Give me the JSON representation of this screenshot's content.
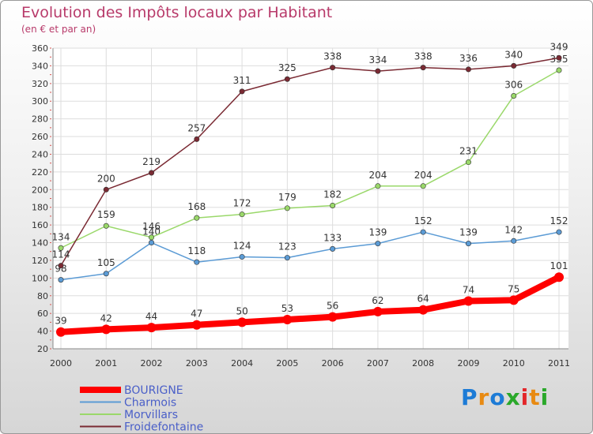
{
  "title": "Evolution des Impôts locaux par Habitant",
  "subtitle": "(en € et par an)",
  "logo": {
    "text": "Proxiti",
    "letters": [
      "P",
      "r",
      "o",
      "x",
      "i",
      "t",
      "i"
    ],
    "colors": [
      "#1d7bd6",
      "#e88a12",
      "#1d7bd6",
      "#2aa82a",
      "#e3262a",
      "#e88a12",
      "#2aa82a"
    ]
  },
  "chart_data": {
    "type": "line",
    "x": [
      "2000",
      "2001",
      "2002",
      "2003",
      "2004",
      "2005",
      "2006",
      "2007",
      "2008",
      "2009",
      "2010",
      "2011"
    ],
    "ylim": [
      20,
      360
    ],
    "yticks": [
      20,
      40,
      60,
      80,
      100,
      120,
      140,
      160,
      180,
      200,
      220,
      240,
      260,
      280,
      300,
      320,
      340,
      360
    ],
    "grid": true,
    "legend_position": "bottom-left",
    "series": [
      {
        "name": "BOURIGNE",
        "color": "#ff0000",
        "width": 8,
        "values": [
          39,
          42,
          44,
          47,
          50,
          53,
          56,
          62,
          64,
          74,
          75,
          101
        ],
        "labels": [
          "39",
          "42",
          "44",
          "47",
          "50",
          "53",
          "56",
          "62",
          "64",
          "74",
          "75",
          "101"
        ]
      },
      {
        "name": "Charmois",
        "color": "#5b9bd5",
        "width": 1.5,
        "values": [
          98,
          105,
          140,
          118,
          124,
          123,
          133,
          139,
          152,
          139,
          142,
          152
        ],
        "labels": [
          "98",
          "105",
          "140",
          "118",
          "124",
          "123",
          "133",
          "139",
          "152",
          "139",
          "142",
          "152"
        ]
      },
      {
        "name": "Morvillars",
        "color": "#9ad86a",
        "width": 1.5,
        "values": [
          134,
          159,
          146,
          168,
          172,
          179,
          182,
          204,
          204,
          231,
          306,
          335
        ],
        "labels": [
          "134",
          "159",
          "146",
          "168",
          "172",
          "179",
          "182",
          "204",
          "204",
          "231",
          "306",
          "335"
        ]
      },
      {
        "name": "Froidefontaine",
        "color": "#7a2a33",
        "width": 1.5,
        "values": [
          114,
          200,
          219,
          257,
          311,
          325,
          338,
          334,
          338,
          336,
          340,
          349
        ],
        "labels": [
          "114",
          "200",
          "219",
          "257",
          "311",
          "325",
          "338",
          "334",
          "338",
          "336",
          "340",
          "349"
        ]
      }
    ]
  }
}
